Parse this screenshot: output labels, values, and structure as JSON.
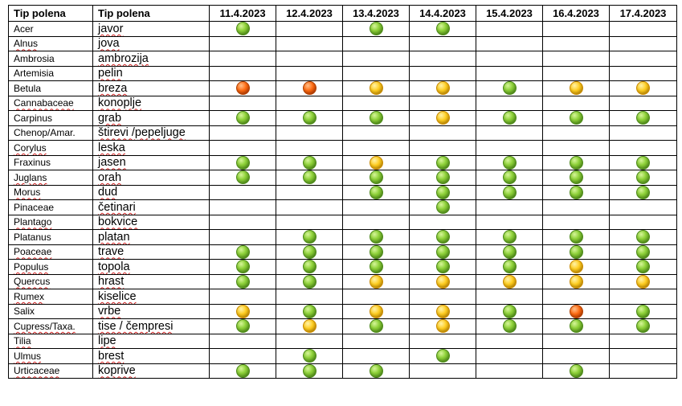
{
  "header": {
    "col_latin": "Tip polena",
    "col_local": "Tip polena",
    "dates": [
      "11.4.2023",
      "12.4.2023",
      "13.4.2023",
      "14.4.2023",
      "15.4.2023",
      "16.4.2023",
      "17.4.2023"
    ]
  },
  "level_colors": {
    "green": "#7cc52a",
    "yellow": "#ffc61a",
    "red": "#f25a0a"
  },
  "rows": [
    {
      "latin": "Acer",
      "local": "javor",
      "levels": [
        "green",
        "",
        "green",
        "green",
        "",
        "",
        ""
      ]
    },
    {
      "latin": "Alnus",
      "local": "jova",
      "levels": [
        "",
        "",
        "",
        "",
        "",
        "",
        ""
      ]
    },
    {
      "latin": "Ambrosia",
      "local": "ambrozija",
      "levels": [
        "",
        "",
        "",
        "",
        "",
        "",
        ""
      ]
    },
    {
      "latin": "Artemisia",
      "local": "pelin",
      "levels": [
        "",
        "",
        "",
        "",
        "",
        "",
        ""
      ]
    },
    {
      "latin": "Betula",
      "local": "breza",
      "levels": [
        "red",
        "red",
        "yellow",
        "yellow",
        "green",
        "yellow",
        "yellow"
      ]
    },
    {
      "latin": "Cannabaceae",
      "local": "konoplje",
      "levels": [
        "",
        "",
        "",
        "",
        "",
        "",
        ""
      ]
    },
    {
      "latin": "Carpinus",
      "local": "grab",
      "levels": [
        "green",
        "green",
        "green",
        "yellow",
        "green",
        "green",
        "green"
      ]
    },
    {
      "latin": "Chenop/Amar.",
      "local": "štirevi /pepeljuge",
      "levels": [
        "",
        "",
        "",
        "",
        "",
        "",
        ""
      ]
    },
    {
      "latin": "Corylus",
      "local": "leska",
      "levels": [
        "",
        "",
        "",
        "",
        "",
        "",
        ""
      ]
    },
    {
      "latin": "Fraxinus",
      "local": "jasen",
      "levels": [
        "green",
        "green",
        "yellow",
        "green",
        "green",
        "green",
        "green"
      ]
    },
    {
      "latin": "Juglans",
      "local": "orah",
      "levels": [
        "green",
        "green",
        "green",
        "green",
        "green",
        "green",
        "green"
      ]
    },
    {
      "latin": "Morus",
      "local": "dud",
      "levels": [
        "",
        "",
        "green",
        "green",
        "green",
        "green",
        "green"
      ]
    },
    {
      "latin": "Pinaceae",
      "local": "četinari",
      "levels": [
        "",
        "",
        "",
        "green",
        "",
        "",
        ""
      ]
    },
    {
      "latin": "Plantago",
      "local": "bokvice",
      "levels": [
        "",
        "",
        "",
        "",
        "",
        "",
        ""
      ]
    },
    {
      "latin": "Platanus",
      "local": "platan",
      "levels": [
        "",
        "green",
        "green",
        "green",
        "green",
        "green",
        "green"
      ]
    },
    {
      "latin": "Poaceae",
      "local": "trave",
      "levels": [
        "green",
        "green",
        "green",
        "green",
        "green",
        "green",
        "green"
      ]
    },
    {
      "latin": "Populus",
      "local": "topola",
      "levels": [
        "green",
        "green",
        "green",
        "green",
        "green",
        "yellow",
        "green"
      ]
    },
    {
      "latin": "Quercus",
      "local": "hrast",
      "levels": [
        "green",
        "green",
        "yellow",
        "yellow",
        "yellow",
        "yellow",
        "yellow"
      ]
    },
    {
      "latin": "Rumex",
      "local": "kiselice",
      "levels": [
        "",
        "",
        "",
        "",
        "",
        "",
        ""
      ]
    },
    {
      "latin": "Salix",
      "local": "vrbe",
      "levels": [
        "yellow",
        "green",
        "yellow",
        "yellow",
        "green",
        "red",
        "green"
      ]
    },
    {
      "latin": "Cupress/Taxa.",
      "local": "tise / čempresi",
      "levels": [
        "green",
        "yellow",
        "green",
        "yellow",
        "green",
        "green",
        "green"
      ]
    },
    {
      "latin": "Tilia",
      "local": "lipe",
      "levels": [
        "",
        "",
        "",
        "",
        "",
        "",
        ""
      ]
    },
    {
      "latin": "Ulmus",
      "local": "brest",
      "levels": [
        "",
        "green",
        "",
        "green",
        "",
        "",
        ""
      ]
    },
    {
      "latin": "Urticaceae",
      "local": "koprive",
      "levels": [
        "green",
        "green",
        "green",
        "",
        "",
        "green",
        ""
      ]
    }
  ]
}
